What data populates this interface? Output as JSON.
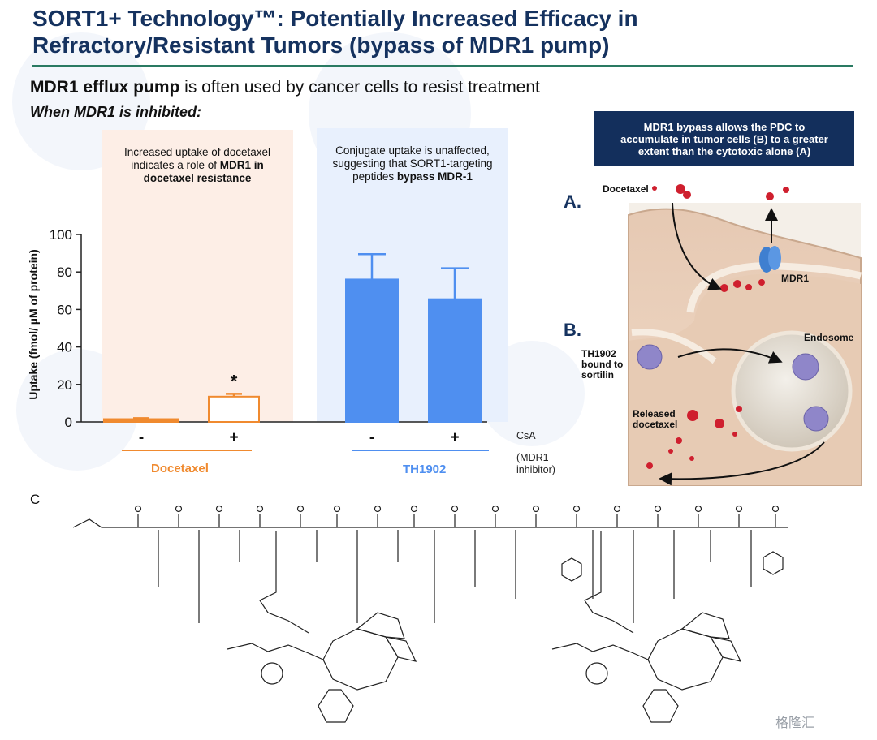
{
  "slide": {
    "title_line1": "SORT1+ Technology™: Potentially Increased Efficacy in",
    "title_line2": "Refractory/Resistant Tumors (bypass of MDR1 pump)",
    "subhead_bold": "MDR1 efflux pump",
    "subhead_rest": " is often used by cancer cells to resist treatment",
    "subhead2": "When MDR1 is inhibited:",
    "panel_c_label": "C",
    "watermark": "格隆汇"
  },
  "notes": {
    "left_line1": "Increased uptake of docetaxel",
    "left_line2_pre": "indicates a role of ",
    "left_line2_bold": "MDR1 in",
    "left_line3_bold": "docetaxel resistance",
    "right_line1": "Conjugate uptake is unaffected,",
    "right_line2": "suggesting that SORT1-targeting",
    "right_line3_pre": "peptides ",
    "right_line3_bold": "bypass MDR-1"
  },
  "colors": {
    "docetaxel": "#f08a2f",
    "th1902": "#4f8ff0",
    "left_panel_bg": "#fdeee6",
    "right_panel_bg": "#e8f0fd",
    "banner": "#132f5c",
    "title": "#15325f"
  },
  "chart_data": {
    "type": "bar",
    "ylabel": "Uptake (fmol/ µM of protein)",
    "ylim": [
      0,
      100
    ],
    "yticks": [
      0,
      20,
      40,
      60,
      80,
      100
    ],
    "x_variable": "CsA",
    "x_variable_note": "(MDR1 inhibitor)",
    "categories": [
      "-",
      "+",
      "-",
      "+"
    ],
    "groups": [
      {
        "name": "Docetaxel",
        "bars": [
          0,
          1
        ]
      },
      {
        "name": "TH1902",
        "bars": [
          2,
          3
        ]
      }
    ],
    "values": [
      1.5,
      13.5,
      76,
      65.5
    ],
    "errors": [
      0.5,
      1.5,
      13.5,
      16.5
    ],
    "significance": [
      "",
      "*",
      "",
      ""
    ]
  },
  "figure": {
    "banner_line1": "MDR1 bypass allows the PDC to",
    "banner_line2": "accumulate in tumor cells (B) to a greater",
    "banner_line3": "extent than the cytotoxic alone (A)",
    "label_a": "A.",
    "label_b": "B.",
    "docetaxel": "Docetaxel",
    "mdr1": "MDR1",
    "endosome": "Endosome",
    "th1902_l1": "TH1902",
    "th1902_l2": "bound to",
    "th1902_l3": "sortilin",
    "released_l1": "Released",
    "released_l2": "docetaxel"
  }
}
